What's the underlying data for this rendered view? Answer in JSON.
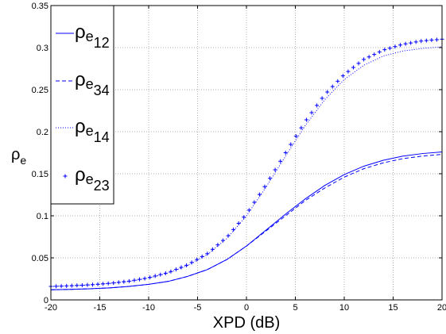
{
  "chart_data": {
    "type": "line",
    "xlabel": "XPD (dB)",
    "ylabel": {
      "base": "ρ",
      "sub": "e"
    },
    "xlim": [
      -20,
      20
    ],
    "ylim": [
      0,
      0.35
    ],
    "xticks": [
      -20,
      -15,
      -10,
      -5,
      0,
      5,
      10,
      15,
      20
    ],
    "xtick_labels": [
      "-20",
      "-15",
      "-10",
      "-5",
      "0",
      "5",
      "10",
      "15",
      "20"
    ],
    "yticks": [
      0,
      0.05,
      0.1,
      0.15,
      0.2,
      0.25,
      0.3,
      0.35
    ],
    "ytick_labels": [
      "0",
      "0.05",
      "0.1",
      "0.15",
      "0.2",
      "0.25",
      "0.3",
      "0.35"
    ],
    "grid": true,
    "legend_position": "top-left",
    "color": "#0000ff",
    "x": [
      -20,
      -18,
      -16,
      -14,
      -12,
      -10,
      -8,
      -6,
      -4,
      -2,
      0,
      2,
      4,
      6,
      8,
      10,
      12,
      14,
      16,
      18,
      20
    ],
    "series": [
      {
        "name": {
          "base": "ρ",
          "sub1": "e",
          "sub2": "12"
        },
        "style": "solid",
        "values": [
          0.012,
          0.0125,
          0.0132,
          0.0143,
          0.016,
          0.0185,
          0.022,
          0.028,
          0.036,
          0.048,
          0.064,
          0.083,
          0.102,
          0.12,
          0.136,
          0.149,
          0.159,
          0.166,
          0.171,
          0.174,
          0.176
        ]
      },
      {
        "name": {
          "base": "ρ",
          "sub1": "e",
          "sub2": "34"
        },
        "style": "dashed",
        "values": [
          0.012,
          0.0125,
          0.0132,
          0.0143,
          0.016,
          0.0185,
          0.022,
          0.028,
          0.036,
          0.048,
          0.064,
          0.082,
          0.1,
          0.118,
          0.133,
          0.146,
          0.156,
          0.163,
          0.168,
          0.171,
          0.173
        ]
      },
      {
        "name": {
          "base": "ρ",
          "sub1": "e",
          "sub2": "14"
        },
        "style": "dotted",
        "values": [
          0.016,
          0.0167,
          0.0178,
          0.0195,
          0.022,
          0.026,
          0.032,
          0.041,
          0.054,
          0.073,
          0.1,
          0.134,
          0.171,
          0.207,
          0.238,
          0.262,
          0.279,
          0.29,
          0.296,
          0.299,
          0.301
        ]
      },
      {
        "name": {
          "base": "ρ",
          "sub1": "e",
          "sub2": "23"
        },
        "style": "plus",
        "values": [
          0.016,
          0.0168,
          0.0179,
          0.0197,
          0.0223,
          0.0263,
          0.0325,
          0.0418,
          0.055,
          0.0745,
          0.102,
          0.137,
          0.175,
          0.212,
          0.244,
          0.268,
          0.286,
          0.297,
          0.304,
          0.308,
          0.31
        ]
      }
    ]
  }
}
